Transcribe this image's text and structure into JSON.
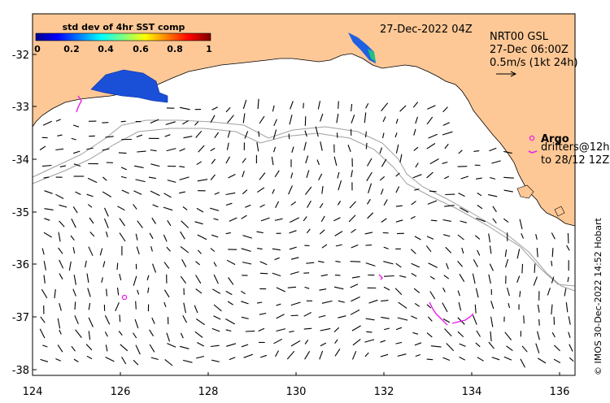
{
  "colorbar": {
    "title": "std dev of 4hr SST comp",
    "ticks": [
      "0",
      "0.2",
      "0.4",
      "0.6",
      "0.8",
      "1"
    ]
  },
  "header": {
    "date": "27-Dec-2022 04Z"
  },
  "product": {
    "name": "NRT00 GSL",
    "time": "27-Dec 06:00Z",
    "scale": "0.5m/s (1kt 24h)"
  },
  "legend": {
    "argo": "Argo",
    "drifters_line1": "drifters@12h",
    "drifters_line2": "to 28/12 12Z"
  },
  "axes": {
    "x_ticks": [
      "124",
      "126",
      "128",
      "130",
      "132",
      "134",
      "136"
    ],
    "y_ticks": [
      "-32",
      "-33",
      "-34",
      "-35",
      "-36",
      "-37",
      "-38"
    ]
  },
  "credit": "© IMOS 30-Dec-2022 14:52 Hobart",
  "colors": {
    "land": "#fdc896",
    "drifter": "#e81ee8",
    "bathymetry": "#a0a0a0"
  }
}
